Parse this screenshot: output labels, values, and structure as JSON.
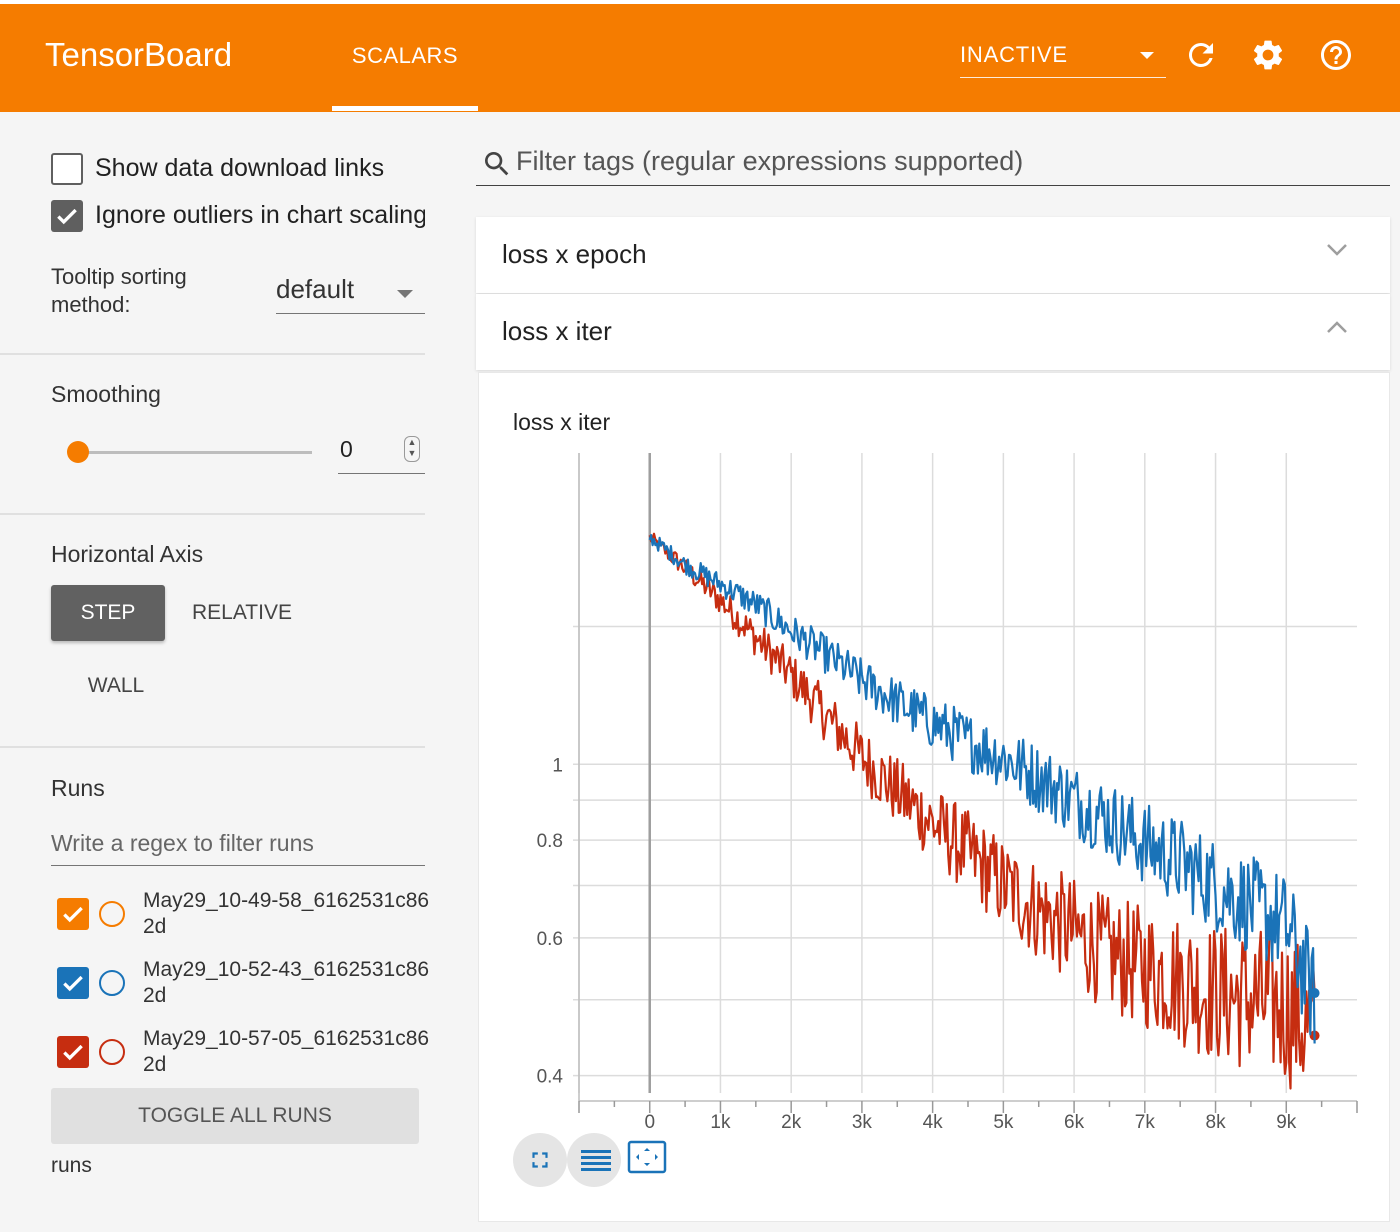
{
  "app": {
    "title": "TensorBoard"
  },
  "nav": {
    "tab_scalars": "SCALARS",
    "status_select": "INACTIVE"
  },
  "icons": {
    "refresh": "refresh-icon",
    "settings": "gear-icon",
    "help": "help-circle-icon",
    "search": "search-icon",
    "fullscreen": "fullscreen-icon",
    "logscale": "log-scale-icon",
    "fit": "fit-domain-icon"
  },
  "sidebar": {
    "show_download_links": "Show data download links",
    "ignore_outliers": "Ignore outliers in chart scaling",
    "tooltip_label_line1": "Tooltip sorting",
    "tooltip_label_line2": "method:",
    "tooltip_value": "default",
    "smoothing_title": "Smoothing",
    "smoothing_value": "0",
    "smoothing_level": 0,
    "horizontal_axis_title": "Horizontal Axis",
    "axis_step": "STEP",
    "axis_relative": "RELATIVE",
    "axis_wall": "WALL",
    "runs_title": "Runs",
    "runs_filter_placeholder": "Write a regex to filter runs",
    "runs": [
      {
        "name": "May29_10-49-58_6162531c862d",
        "color": "#f57c00",
        "checked": true
      },
      {
        "name": "May29_10-52-43_6162531c862d",
        "color": "#1a73b8",
        "checked": true
      },
      {
        "name": "May29_10-57-05_6162531c862d",
        "color": "#c62d10",
        "checked": true
      }
    ],
    "toggle_all": "TOGGLE ALL RUNS",
    "runs_footer": "runs"
  },
  "main": {
    "filter_placeholder": "Filter tags (regular expressions supported)",
    "groups": [
      {
        "title": "loss x epoch",
        "expanded": false
      },
      {
        "title": "loss x iter",
        "expanded": true
      }
    ]
  },
  "colors": {
    "accent": "#f57c00",
    "run_blue": "#1a73b8",
    "run_red": "#c62d10"
  },
  "chart_data": {
    "type": "line",
    "title": "loss x iter",
    "xlabel": "",
    "ylabel": "",
    "y_scale": "log",
    "x_ticks": [
      "0",
      "1k",
      "2k",
      "3k",
      "4k",
      "5k",
      "6k",
      "7k",
      "8k",
      "9k"
    ],
    "y_ticks": [
      "1",
      "0.8",
      "0.6",
      "0.4"
    ],
    "xlim": [
      -1000,
      10000
    ],
    "ylim": [
      0.38,
      2.5
    ],
    "grid": true,
    "series": [
      {
        "color": "#1a73b8",
        "x": [
          0,
          500,
          1000,
          1500,
          2000,
          2500,
          3000,
          3500,
          4000,
          4500,
          5000,
          5500,
          6000,
          6500,
          7000,
          7500,
          8000,
          8500,
          9000,
          9400
        ],
        "y": [
          1.95,
          1.8,
          1.7,
          1.6,
          1.48,
          1.38,
          1.28,
          1.2,
          1.13,
          1.07,
          1.02,
          0.96,
          0.9,
          0.85,
          0.79,
          0.75,
          0.7,
          0.66,
          0.62,
          0.5
        ]
      },
      {
        "color": "#c62d10",
        "x": [
          0,
          500,
          1000,
          1500,
          2000,
          2500,
          3000,
          3500,
          4000,
          4500,
          5000,
          5500,
          6000,
          6500,
          7000,
          7500,
          8000,
          8500,
          9000,
          9400
        ],
        "y": [
          1.95,
          1.78,
          1.62,
          1.45,
          1.3,
          1.15,
          1.02,
          0.92,
          0.84,
          0.77,
          0.7,
          0.65,
          0.61,
          0.57,
          0.55,
          0.53,
          0.51,
          0.5,
          0.49,
          0.45
        ]
      }
    ]
  }
}
